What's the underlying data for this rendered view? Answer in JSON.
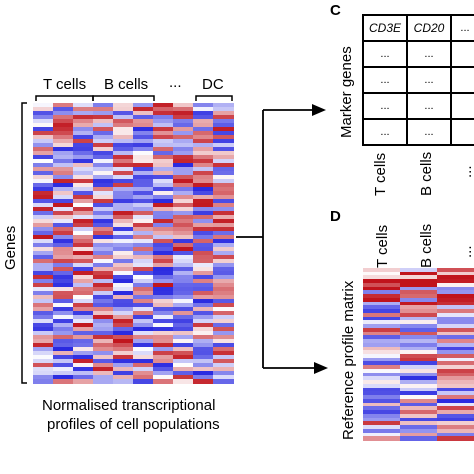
{
  "panel_left": {
    "column_groups": [
      "T cells",
      "B cells",
      "...",
      "DC"
    ],
    "y_label": "Genes",
    "caption_line1": "Normalised transcriptional",
    "caption_line2": "profiles of cell populations"
  },
  "panel_c": {
    "letter": "C",
    "y_label": "Marker genes",
    "gene_headers": [
      "CD3E",
      "CD20",
      "..."
    ],
    "cell_placeholder": "...",
    "column_labels": [
      "T cells",
      "B cells",
      "..."
    ]
  },
  "panel_d": {
    "letter": "D",
    "y_label": "Reference profile matrix",
    "column_labels": [
      "T cells",
      "B cells",
      "..."
    ]
  },
  "colors": {
    "high": "#c0141c",
    "low": "#2a2ae0",
    "mid": "#ffffff"
  }
}
